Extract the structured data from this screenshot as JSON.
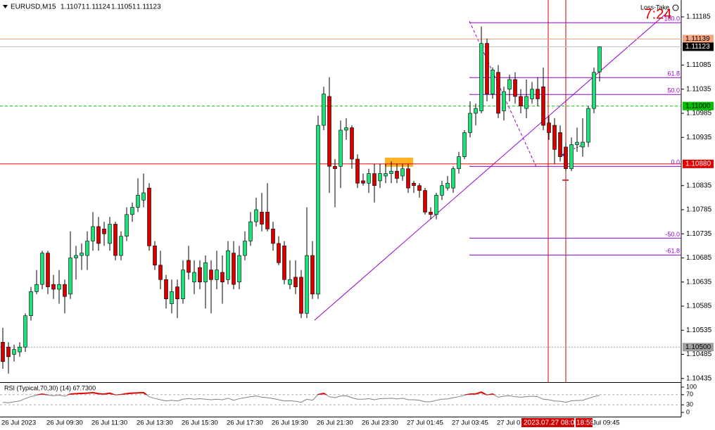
{
  "chart_data": [
    {
      "type": "candlestick",
      "title": "EURUSD,M15",
      "categories": [
        "26 Jul 2023",
        null,
        null,
        null,
        null,
        null,
        null,
        null,
        "26 Jul 09:30",
        null,
        null,
        null,
        null,
        null,
        null,
        null,
        "26 Jul 11:30",
        null,
        null,
        null,
        null,
        null,
        null,
        null,
        "26 Jul 13:30",
        null,
        null,
        null,
        null,
        null,
        null,
        null,
        "26 Jul 15:30",
        null,
        null,
        null,
        null,
        null,
        null,
        null,
        "26 Jul 17:30",
        null,
        null,
        null,
        null,
        null,
        null,
        null,
        "26 Jul 19:30",
        null,
        null,
        null,
        null,
        null,
        null,
        null,
        "26 Jul 21:30",
        null,
        null,
        null,
        null,
        null,
        null,
        null,
        "26 Jul 23:30",
        null,
        null,
        null,
        null,
        null,
        null,
        null,
        "27 Jul 01:45",
        null,
        null,
        null,
        null,
        null,
        null,
        null,
        "27 Jul 03:45",
        null,
        null,
        null,
        null,
        null,
        null,
        null,
        "27 Jul 0",
        null,
        null,
        null,
        null,
        null,
        null,
        null,
        null,
        null,
        null,
        null,
        null,
        null,
        null,
        null,
        null,
        "Jul 09:45",
        null
      ],
      "open": [
        1.1051,
        1.105,
        1.10485,
        1.1049,
        1.105,
        1.10565,
        1.10615,
        1.1063,
        1.10695,
        1.1063,
        1.1062,
        1.1063,
        1.1061,
        1.10685,
        1.1069,
        1.1069,
        1.1072,
        1.1075,
        1.10745,
        1.10715,
        1.10755,
        1.1069,
        1.1073,
        1.10775,
        1.1079,
        1.10805,
        1.1083,
        1.1071,
        1.1067,
        1.1064,
        1.1059,
        1.10625,
        1.106,
        1.1068,
        1.10635,
        1.10665,
        1.10635,
        1.1066,
        1.1064,
        1.10655,
        1.1064,
        1.10695,
        1.10635,
        1.1069,
        1.1072,
        1.1076,
        1.1078,
        1.1078,
        1.10745,
        1.10715,
        1.1071,
        1.1063,
        1.10645,
        1.10645,
        1.1057,
        1.1069,
        1.1061,
        1.1096,
        1.1102,
        1.10875,
        1.10875,
        1.1095,
        1.10955,
        1.1089,
        1.10845,
        1.1084,
        1.1086,
        1.10845,
        1.10855,
        1.1086,
        1.10865,
        1.10855,
        1.1087,
        1.1084,
        1.10835,
        1.10825,
        1.1078,
        1.10775,
        1.10815,
        1.1083,
        1.1083,
        1.1087,
        1.10895,
        1.10945,
        1.10985,
        1.1099,
        1.1113,
        1.11025,
        1.1107,
        1.1099,
        1.11035,
        1.11055,
        1.1102,
        1.10995,
        1.11015,
        1.11035,
        1.1104,
        1.10965,
        1.1096,
        1.10945,
        1.10915,
        1.1087,
        1.1092,
        1.10915,
        1.10925,
        1.10995,
        1.11071
      ],
      "high": [
        1.1054,
        1.1051,
        1.10505,
        1.1051,
        1.1057,
        1.10625,
        1.1066,
        1.107,
        1.107,
        1.1065,
        1.1066,
        1.1064,
        1.1074,
        1.1071,
        1.10715,
        1.1074,
        1.1078,
        1.1077,
        1.1076,
        1.1077,
        1.1076,
        1.1074,
        1.1079,
        1.108,
        1.1085,
        1.1086,
        1.1084,
        1.1072,
        1.107,
        1.1065,
        1.1064,
        1.1064,
        1.1068,
        1.1071,
        1.1068,
        1.1068,
        1.1069,
        1.1068,
        1.107,
        1.1069,
        1.1072,
        1.1072,
        1.1071,
        1.1074,
        1.1078,
        1.1081,
        1.1082,
        1.1084,
        1.1076,
        1.1073,
        1.1072,
        1.1068,
        1.1068,
        1.1066,
        1.1079,
        1.1072,
        1.1098,
        1.1104,
        1.1106,
        1.1089,
        1.1097,
        1.10975,
        1.1096,
        1.109,
        1.1086,
        1.1087,
        1.1088,
        1.1088,
        1.1088,
        1.10885,
        1.1088,
        1.1088,
        1.1088,
        1.10845,
        1.1084,
        1.1083,
        1.1079,
        1.1082,
        1.10845,
        1.10855,
        1.10875,
        1.10905,
        1.1095,
        1.1101,
        1.11005,
        1.11165,
        1.1114,
        1.1108,
        1.11085,
        1.1104,
        1.11065,
        1.1107,
        1.11035,
        1.11055,
        1.1105,
        1.1106,
        1.1108,
        1.1098,
        1.10975,
        1.1096,
        1.10925,
        1.10935,
        1.10955,
        1.10975,
        1.11,
        1.1108,
        1.11124
      ],
      "low": [
        1.10455,
        1.10445,
        1.1047,
        1.1048,
        1.1049,
        1.10555,
        1.1061,
        1.1062,
        1.1061,
        1.106,
        1.1059,
        1.1057,
        1.106,
        1.1064,
        1.1066,
        1.1066,
        1.107,
        1.107,
        1.1071,
        1.107,
        1.1068,
        1.1068,
        1.1072,
        1.1076,
        1.1078,
        1.1079,
        1.107,
        1.1066,
        1.1062,
        1.1058,
        1.1057,
        1.1056,
        1.1059,
        1.1064,
        1.1061,
        1.1062,
        1.1058,
        1.1057,
        1.1062,
        1.1059,
        1.1063,
        1.1062,
        1.1062,
        1.1068,
        1.1071,
        1.1075,
        1.1074,
        1.1074,
        1.107,
        1.1067,
        1.1063,
        1.1062,
        1.1061,
        1.1056,
        1.1056,
        1.106,
        1.106,
        1.1095,
        1.1082,
        1.1079,
        1.1083,
        1.1093,
        1.1087,
        1.1083,
        1.10835,
        1.1082,
        1.108,
        1.1083,
        1.1084,
        1.1084,
        1.1084,
        1.10845,
        1.1082,
        1.1082,
        1.1081,
        1.10775,
        1.10765,
        1.10765,
        1.10805,
        1.10825,
        1.1082,
        1.1086,
        1.1089,
        1.10935,
        1.1096,
        1.10985,
        1.1101,
        1.11015,
        1.10975,
        1.1097,
        1.1101,
        1.11005,
        1.10985,
        1.10975,
        1.11005,
        1.11,
        1.1095,
        1.1093,
        1.1088,
        1.10885,
        1.10865,
        1.10865,
        1.10905,
        1.10895,
        1.10915,
        1.10985,
        1.11051
      ],
      "close": [
        1.1047,
        1.1048,
        1.10495,
        1.105,
        1.10565,
        1.10615,
        1.1063,
        1.10695,
        1.10625,
        1.1062,
        1.1063,
        1.10605,
        1.10685,
        1.1069,
        1.10695,
        1.1072,
        1.1075,
        1.10715,
        1.10735,
        1.10755,
        1.1069,
        1.1073,
        1.10775,
        1.1079,
        1.10815,
        1.1082,
        1.1071,
        1.1067,
        1.1064,
        1.106,
        1.10615,
        1.106,
        1.1066,
        1.10655,
        1.10655,
        1.10635,
        1.10675,
        1.1064,
        1.1066,
        1.10635,
        1.107,
        1.1063,
        1.1069,
        1.1072,
        1.1076,
        1.10785,
        1.10755,
        1.10745,
        1.10715,
        1.10675,
        1.1064,
        1.1064,
        1.10625,
        1.1057,
        1.1069,
        1.1061,
        1.1096,
        1.11025,
        1.10875,
        1.1087,
        1.1095,
        1.10955,
        1.1089,
        1.1084,
        1.1084,
        1.1086,
        1.10835,
        1.1086,
        1.1086,
        1.10865,
        1.1085,
        1.1087,
        1.1083,
        1.10835,
        1.10825,
        1.1078,
        1.10775,
        1.10815,
        1.10835,
        1.1084,
        1.1087,
        1.10895,
        1.10945,
        1.10985,
        1.10995,
        1.1113,
        1.11025,
        1.11075,
        1.10985,
        1.1103,
        1.11055,
        1.1102,
        1.11,
        1.1102,
        1.11035,
        1.11015,
        1.1096,
        1.10945,
        1.1091,
        1.10895,
        1.1087,
        1.1092,
        1.10925,
        1.10925,
        1.10995,
        1.1107,
        1.11123
      ],
      "up_color": "#22e07a",
      "down_color": "#d40000",
      "ylim": [
        1.1042,
        1.1122
      ],
      "yticks": [
        1.11185,
        1.11085,
        1.11035,
        1.10985,
        1.10935,
        1.10835,
        1.10785,
        1.10735,
        1.10685,
        1.10635,
        1.10585,
        1.10535,
        1.10485,
        1.10435
      ],
      "levels": [
        {
          "value": 1.11139,
          "label": "1.11139",
          "color": "#f4a582",
          "label_color": "#f4a582",
          "text_color": "#000000",
          "style": "solid"
        },
        {
          "value": 1.11123,
          "label": "1.11123",
          "color": "#c0c0c0",
          "label_color": "#000000",
          "text_color": "#ffffff",
          "style": "solid"
        },
        {
          "value": 1.11,
          "label": "1.11000",
          "color": "#00c000",
          "label_color": "#00c000",
          "text_color": "#000000",
          "style": "dashed"
        },
        {
          "value": 1.1088,
          "label": "1.10880",
          "color": "#e00000",
          "label_color": "#e00000",
          "text_color": "#ffffff",
          "style": "solid"
        },
        {
          "value": 1.105,
          "label": "1.10500",
          "color": "#a0a0a0",
          "label_color": "#a0a0a0",
          "text_color": "#000000",
          "style": "dotted"
        }
      ],
      "fibo_color": "#9400d3",
      "fibo": [
        {
          "label": "100.0",
          "value": 1.11173
        },
        {
          "label": "61.8",
          "value": 1.11059
        },
        {
          "label": "50.0",
          "value": 1.11024
        },
        {
          "label": "0.0",
          "value": 1.10875
        },
        {
          "label": "-50.0",
          "value": 1.10726
        },
        {
          "label": "-61.8",
          "value": 1.10691
        }
      ],
      "annotations": [
        "7:24",
        "Loss-Take"
      ],
      "crosshair_labels": [
        "2023.07.27 08:00",
        "18:59"
      ]
    },
    {
      "type": "line",
      "title": "RSI (Typical,70,30) (14) 67.7300",
      "values": [
        40,
        38,
        42,
        45,
        55,
        62,
        68,
        72,
        68,
        66,
        68,
        64,
        72,
        74,
        75,
        76,
        78,
        74,
        72,
        76,
        68,
        70,
        74,
        76,
        77,
        78,
        62,
        55,
        50,
        45,
        48,
        45,
        52,
        55,
        52,
        54,
        52,
        50,
        52,
        50,
        56,
        48,
        54,
        58,
        62,
        65,
        60,
        58,
        55,
        50,
        45,
        46,
        44,
        40,
        52,
        48,
        70,
        75,
        62,
        58,
        65,
        66,
        58,
        52,
        52,
        54,
        50,
        54,
        55,
        56,
        53,
        56,
        50,
        50,
        48,
        42,
        42,
        48,
        52,
        53,
        58,
        62,
        68,
        72,
        73,
        80,
        68,
        72,
        60,
        64,
        66,
        62,
        60,
        62,
        64,
        62,
        52,
        50,
        45,
        44,
        40,
        46,
        47,
        48,
        55,
        62,
        67.73
      ],
      "color": "#808080",
      "overbought_color": "#e00000",
      "ylim": [
        0,
        100
      ],
      "yticks": [
        100,
        70,
        30,
        0
      ],
      "levels": [
        70,
        30
      ]
    }
  ]
}
